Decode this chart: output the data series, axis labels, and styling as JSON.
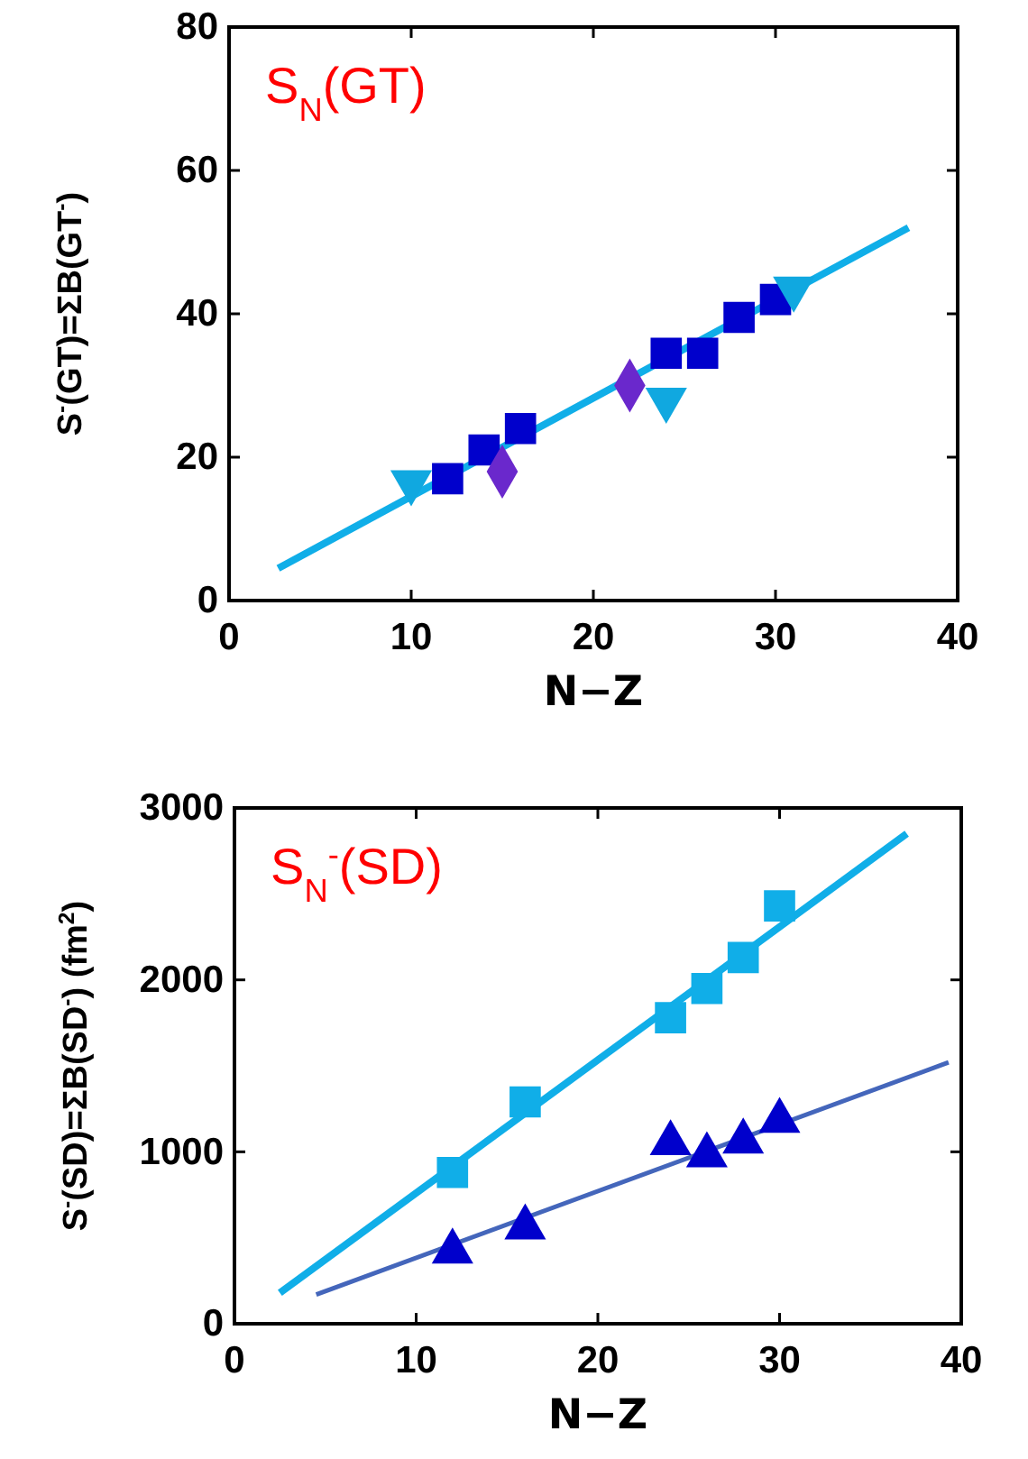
{
  "chart_data": [
    {
      "type": "scatter",
      "xlabel": "N−Z",
      "ylabel": "S$^{-}$(GT)=ΣB(GT$^{-}$)",
      "annotations": [
        "S$_{N}$(GT)"
      ],
      "xlim": [
        0,
        40
      ],
      "ylim": [
        0,
        80
      ],
      "xticks": [
        0,
        10,
        20,
        30,
        40
      ],
      "yticks": [
        0,
        20,
        40,
        60,
        80
      ],
      "grid": false,
      "series": [
        {
          "type": "line",
          "color": "#10aee8",
          "marker": "none",
          "line_style": "solid",
          "x": [
            2.7,
            37.3
          ],
          "values": [
            4.5,
            52
          ]
        },
        {
          "type": "scatter",
          "color": "#0000cc",
          "marker": "square",
          "x": [
            12,
            14,
            16,
            24,
            26,
            28,
            30
          ],
          "values": [
            17,
            21,
            24,
            34.5,
            34.5,
            39.5,
            42
          ]
        },
        {
          "type": "scatter",
          "color": "#6a28cc",
          "marker": "diamond",
          "x": [
            15,
            22
          ],
          "values": [
            18,
            30
          ]
        },
        {
          "type": "scatter",
          "color": "#10a8e0",
          "marker": "triangle-down",
          "x": [
            10,
            24,
            31
          ],
          "values": [
            16.5,
            28,
            43.5
          ]
        }
      ]
    },
    {
      "type": "scatter",
      "xlabel": "N−Z",
      "ylabel": "S$^{-}$(SD)=ΣB(SD$^{-}$)   (fm$^{2}$)",
      "annotations": [
        "S$_{N}$$^{-}$(SD)"
      ],
      "xlim": [
        0,
        40
      ],
      "ylim": [
        0,
        3000
      ],
      "xticks": [
        0,
        10,
        20,
        30,
        40
      ],
      "yticks": [
        0,
        1000,
        2000,
        3000
      ],
      "grid": false,
      "series": [
        {
          "type": "line",
          "color": "#10aee8",
          "marker": "none",
          "line_style": "solid",
          "x": [
            2.5,
            37
          ],
          "values": [
            180,
            2850
          ]
        },
        {
          "type": "line",
          "color": "#4466bb",
          "marker": "none",
          "line_style": "solid",
          "x": [
            4.5,
            39.3
          ],
          "values": [
            170,
            1520
          ]
        },
        {
          "type": "scatter",
          "color": "#10aee8",
          "marker": "square",
          "x": [
            12,
            16,
            24,
            26,
            28,
            30
          ],
          "values": [
            880,
            1290,
            1780,
            1950,
            2130,
            2430
          ]
        },
        {
          "type": "scatter",
          "color": "#0000cc",
          "marker": "triangle",
          "x": [
            12,
            16,
            24,
            26,
            28,
            30
          ],
          "values": [
            420,
            560,
            1050,
            980,
            1060,
            1180
          ]
        }
      ]
    }
  ]
}
